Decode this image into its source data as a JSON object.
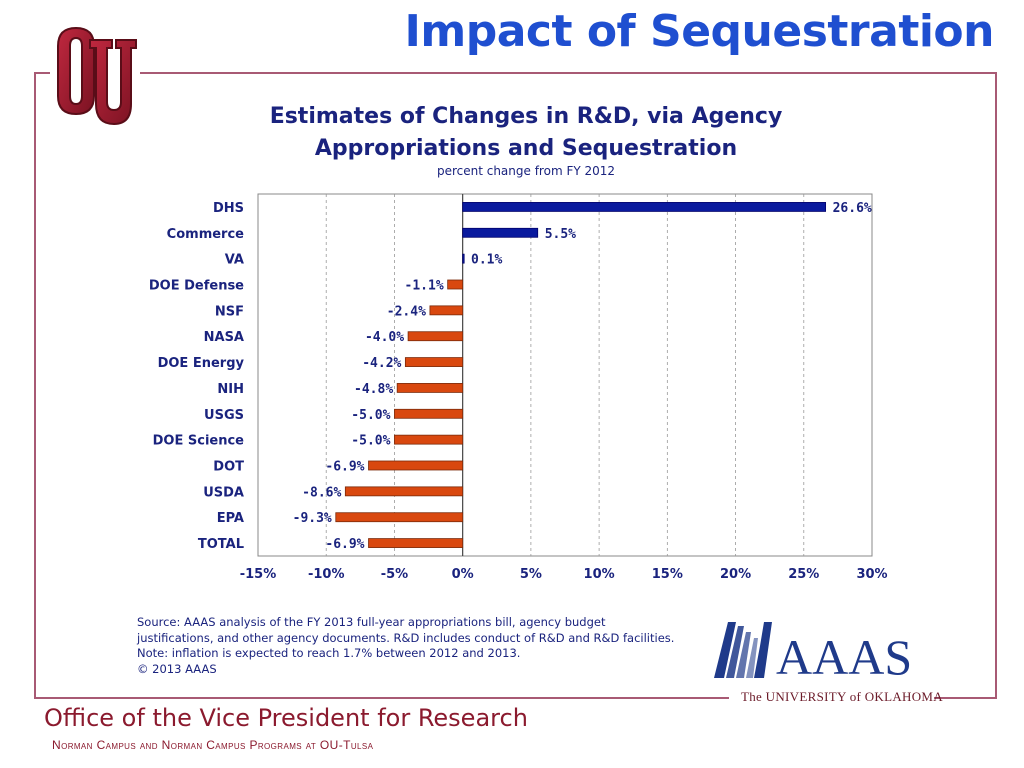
{
  "slide": {
    "title": "Impact of Sequestration",
    "office": "Office of the Vice President for Research",
    "campus": "Norman Campus and Norman Campus Programs at OU-Tulsa",
    "university": "The UNIVERSITY of OKLAHOMA",
    "logo_text": "AAAS"
  },
  "source": {
    "line1": "Source: AAAS analysis of the FY 2013 full-year appropriations bill, agency budget",
    "line2": "justifications, and other agency documents. R&D includes conduct of R&D and R&D facilities.",
    "line3": "Note: inflation is expected to reach 1.7% between 2012 and 2013.",
    "line4": "© 2013 AAAS"
  },
  "colors": {
    "positive": "#0a1a9e",
    "negative": "#d9480f",
    "title": "#1f4fd0",
    "text": "#1a237e",
    "ou_crimson": "#8b1a2e"
  },
  "chart_data": {
    "type": "bar",
    "orientation": "horizontal",
    "title_line1": "Estimates of Changes in R&D, via Agency",
    "title_line2": "Appropriations and Sequestration",
    "subtitle": "percent change from FY 2012",
    "categories": [
      "DHS",
      "Commerce",
      "VA",
      "DOE Defense",
      "NSF",
      "NASA",
      "DOE Energy",
      "NIH",
      "USGS",
      "DOE Science",
      "DOT",
      "USDA",
      "EPA",
      "TOTAL"
    ],
    "values": [
      26.6,
      5.5,
      0.1,
      -1.1,
      -2.4,
      -4.0,
      -4.2,
      -4.8,
      -5.0,
      -5.0,
      -6.9,
      -8.6,
      -9.3,
      -6.9
    ],
    "value_labels": [
      "26.6%",
      "5.5%",
      "0.1%",
      "-1.1%",
      "-2.4%",
      "-4.0%",
      "-4.2%",
      "-4.8%",
      "-5.0%",
      "-5.0%",
      "-6.9%",
      "-8.6%",
      "-9.3%",
      "-6.9%"
    ],
    "xlim": [
      -15,
      30
    ],
    "xticks": [
      -15,
      -10,
      -5,
      0,
      5,
      10,
      15,
      20,
      25,
      30
    ],
    "xtick_labels": [
      "-15%",
      "-10%",
      "-5%",
      "0%",
      "5%",
      "10%",
      "15%",
      "20%",
      "25%",
      "30%"
    ],
    "grid": "vertical dashed"
  }
}
